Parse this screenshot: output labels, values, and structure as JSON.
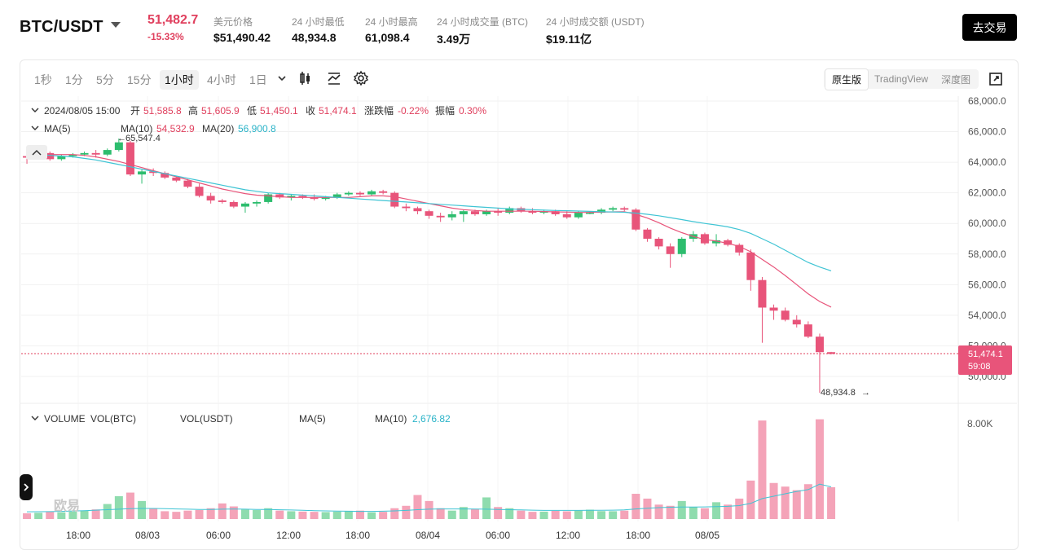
{
  "header": {
    "pair": "BTC/USDT",
    "last_price": "51,482.7",
    "change_pct": "-15.33%",
    "stats": [
      {
        "label": "美元价格",
        "value": "$51,490.42"
      },
      {
        "label": "24 小时最低",
        "value": "48,934.8"
      },
      {
        "label": "24 小时最高",
        "value": "61,098.4"
      },
      {
        "label": "24 小时成交量 (BTC)",
        "value": "3.49万"
      },
      {
        "label": "24 小时成交额 (USDT)",
        "value": "$19.11亿"
      }
    ],
    "trade_button": "去交易"
  },
  "toolbar": {
    "timeframes": [
      "1秒",
      "1分",
      "5分",
      "15分",
      "1小时",
      "4小时",
      "1日"
    ],
    "active_timeframe": "1小时",
    "views": [
      "原生版",
      "TradingView",
      "深度图"
    ],
    "active_view": "原生版"
  },
  "legend": {
    "datetime": "2024/08/05 15:00",
    "open_label": "开",
    "open": "51,585.8",
    "high_label": "高",
    "high": "51,605.9",
    "low_label": "低",
    "low": "51,450.1",
    "close_label": "收",
    "close": "51,474.1",
    "chg_label": "涨跌幅",
    "chg": "-0.22%",
    "amp_label": "振幅",
    "amp": "0.30%",
    "ma5": "MA(5)",
    "ma10_label": "MA(10)",
    "ma10": "54,532.9",
    "ma20_label": "MA(20)",
    "ma20": "56,900.8"
  },
  "volume_legend": {
    "title": "VOLUME",
    "vol_btc": "VOL(BTC)",
    "vol_usdt": "VOL(USDT)",
    "ma5": "MA(5)",
    "ma10_label": "MA(10)",
    "ma10": "2,676.82"
  },
  "annotations": {
    "high_marker": "65,547.4",
    "low_marker": "48,934.8",
    "price_tag": "51,474.1",
    "countdown": "59:08",
    "volume_axis_top": "8.00K",
    "watermark": "欧易"
  },
  "colors": {
    "up": "#2dbd6e",
    "down": "#e8547a",
    "ma10": "#e8547a",
    "ma20": "#3fc4d4",
    "ma5": "#c26cc5"
  },
  "chart_data": {
    "type": "candlestick",
    "y_axis_ticks": [
      "68,000.0",
      "66,000.0",
      "64,000.0",
      "62,000.0",
      "60,000.0",
      "58,000.0",
      "56,000.0",
      "54,000.0",
      "52,000.0",
      "50,000.0"
    ],
    "x_axis_labels": [
      "18:00",
      "08/03",
      "06:00",
      "12:00",
      "18:00",
      "08/04",
      "06:00",
      "12:00",
      "18:00",
      "08/05"
    ],
    "ylim": [
      49000,
      68500
    ],
    "candles": [
      [
        64400,
        64600,
        63900,
        64300
      ],
      [
        64300,
        64700,
        64200,
        64600
      ],
      [
        64600,
        64700,
        64100,
        64200
      ],
      [
        64200,
        64500,
        64100,
        64400
      ],
      [
        64400,
        64600,
        64300,
        64500
      ],
      [
        64500,
        64700,
        64400,
        64600
      ],
      [
        64600,
        64800,
        64300,
        64500
      ],
      [
        64500,
        64900,
        64400,
        64800
      ],
      [
        64800,
        65547,
        64700,
        65300
      ],
      [
        65300,
        65400,
        63100,
        63200
      ],
      [
        63200,
        63500,
        62600,
        63400
      ],
      [
        63400,
        63600,
        63100,
        63300
      ],
      [
        63300,
        63400,
        62900,
        63000
      ],
      [
        63000,
        63100,
        62700,
        62800
      ],
      [
        62800,
        62900,
        62300,
        62400
      ],
      [
        62400,
        62600,
        61700,
        61800
      ],
      [
        61800,
        62000,
        61300,
        61500
      ],
      [
        61500,
        61600,
        61300,
        61400
      ],
      [
        61400,
        61500,
        61000,
        61100
      ],
      [
        61100,
        61400,
        60700,
        61300
      ],
      [
        61300,
        61500,
        61100,
        61400
      ],
      [
        61400,
        62000,
        61300,
        61900
      ],
      [
        61900,
        62000,
        61600,
        61700
      ],
      [
        61700,
        61900,
        61500,
        61800
      ],
      [
        61800,
        61900,
        61600,
        61700
      ],
      [
        61700,
        61900,
        61500,
        61600
      ],
      [
        61600,
        61800,
        61500,
        61700
      ],
      [
        61700,
        62000,
        61600,
        61900
      ],
      [
        61900,
        62100,
        61800,
        62000
      ],
      [
        62000,
        62100,
        61800,
        61900
      ],
      [
        61900,
        62200,
        61800,
        62100
      ],
      [
        62100,
        62200,
        61900,
        62000
      ],
      [
        62000,
        62100,
        61000,
        61100
      ],
      [
        61100,
        61300,
        60800,
        61000
      ],
      [
        61000,
        61100,
        60600,
        60800
      ],
      [
        60800,
        60900,
        60300,
        60500
      ],
      [
        60500,
        60700,
        60100,
        60400
      ],
      [
        60400,
        60800,
        60200,
        60600
      ],
      [
        60600,
        60900,
        60100,
        60800
      ],
      [
        60800,
        60900,
        60500,
        60600
      ],
      [
        60600,
        60900,
        60500,
        60800
      ],
      [
        60800,
        61000,
        60500,
        60700
      ],
      [
        60700,
        61100,
        60600,
        61000
      ],
      [
        61000,
        61100,
        60700,
        60800
      ],
      [
        60800,
        61000,
        60600,
        60700
      ],
      [
        60700,
        60900,
        60600,
        60800
      ],
      [
        60800,
        60900,
        60500,
        60600
      ],
      [
        60600,
        60800,
        60300,
        60400
      ],
      [
        60400,
        60800,
        60300,
        60700
      ],
      [
        60700,
        60800,
        60600,
        60700
      ],
      [
        60700,
        61000,
        60600,
        60900
      ],
      [
        60900,
        61100,
        60800,
        61000
      ],
      [
        61000,
        61100,
        60800,
        60900
      ],
      [
        60900,
        61000,
        59500,
        59600
      ],
      [
        59600,
        59700,
        58800,
        59000
      ],
      [
        59000,
        59100,
        58300,
        58500
      ],
      [
        58500,
        58700,
        57100,
        58000
      ],
      [
        58000,
        59100,
        57800,
        59000
      ],
      [
        59000,
        59500,
        58800,
        59300
      ],
      [
        59300,
        59400,
        58600,
        58700
      ],
      [
        58700,
        59300,
        58500,
        58900
      ],
      [
        58900,
        59000,
        58500,
        58600
      ],
      [
        58600,
        58700,
        57900,
        58100
      ],
      [
        58100,
        58300,
        55600,
        56300
      ],
      [
        56300,
        56500,
        52200,
        54500
      ],
      [
        54500,
        54700,
        53700,
        54300
      ],
      [
        54300,
        54500,
        53600,
        53700
      ],
      [
        53700,
        54000,
        53200,
        53400
      ],
      [
        53400,
        53600,
        52500,
        52600
      ],
      [
        52600,
        52800,
        48935,
        51586
      ],
      [
        51586,
        51606,
        51450,
        51474
      ]
    ],
    "ma10": [
      64500,
      64500,
      64500,
      64500,
      64500,
      64450,
      64350,
      64200,
      64050,
      63850,
      63650,
      63450,
      63250,
      63050,
      62850,
      62650,
      62450,
      62250,
      62100,
      61950,
      61850,
      61800,
      61750,
      61700,
      61700,
      61700,
      61700,
      61700,
      61700,
      61750,
      61800,
      61800,
      61750,
      61600,
      61450,
      61300,
      61150,
      61000,
      60900,
      60850,
      60800,
      60800,
      60800,
      60800,
      60800,
      60780,
      60760,
      60740,
      60720,
      60720,
      60740,
      60760,
      60770,
      60600,
      60350,
      60050,
      59700,
      59400,
      59150,
      58950,
      58850,
      58700,
      58500,
      58150,
      57650,
      57150,
      56600,
      56000,
      55400,
      54900,
      54533
    ],
    "ma20": [
      64500,
      64500,
      64450,
      64400,
      64350,
      64250,
      64150,
      64000,
      63850,
      63700,
      63550,
      63400,
      63250,
      63100,
      62950,
      62800,
      62650,
      62500,
      62350,
      62200,
      62100,
      62000,
      61950,
      61900,
      61850,
      61800,
      61750,
      61700,
      61650,
      61600,
      61550,
      61500,
      61450,
      61400,
      61350,
      61300,
      61250,
      61200,
      61150,
      61100,
      61050,
      61000,
      60950,
      60920,
      60900,
      60870,
      60850,
      60830,
      60810,
      60790,
      60770,
      60750,
      60730,
      60680,
      60600,
      60500,
      60380,
      60250,
      60120,
      60000,
      59900,
      59780,
      59600,
      59350,
      59000,
      58650,
      58250,
      57850,
      57450,
      57150,
      56901
    ],
    "volumes": [
      480,
      520,
      600,
      560,
      620,
      700,
      800,
      1250,
      1900,
      2200,
      1500,
      900,
      650,
      600,
      700,
      750,
      900,
      1300,
      1050,
      800,
      750,
      900,
      700,
      650,
      620,
      600,
      580,
      620,
      650,
      700,
      560,
      600,
      900,
      1100,
      2000,
      1500,
      900,
      700,
      1000,
      850,
      1800,
      1000,
      900,
      700,
      600,
      620,
      680,
      640,
      700,
      780,
      660,
      650,
      700,
      2100,
      1700,
      1200,
      1100,
      1500,
      1000,
      900,
      1400,
      1200,
      1700,
      3200,
      8200,
      3000,
      2700,
      2400,
      2900,
      8300,
      2650
    ],
    "vol_ma": [
      600,
      610,
      620,
      640,
      670,
      700,
      740,
      780,
      820,
      860,
      880,
      880,
      860,
      840,
      820,
      800,
      800,
      820,
      830,
      820,
      800,
      790,
      770,
      750,
      730,
      700,
      680,
      660,
      650,
      640,
      640,
      650,
      680,
      720,
      780,
      820,
      840,
      840,
      840,
      830,
      820,
      800,
      780,
      760,
      740,
      720,
      720,
      720,
      720,
      730,
      730,
      740,
      760,
      840,
      900,
      950,
      980,
      1000,
      1000,
      1010,
      1030,
      1060,
      1120,
      1300,
      1700,
      1900,
      2100,
      2300,
      2450,
      2900,
      2676
    ]
  }
}
